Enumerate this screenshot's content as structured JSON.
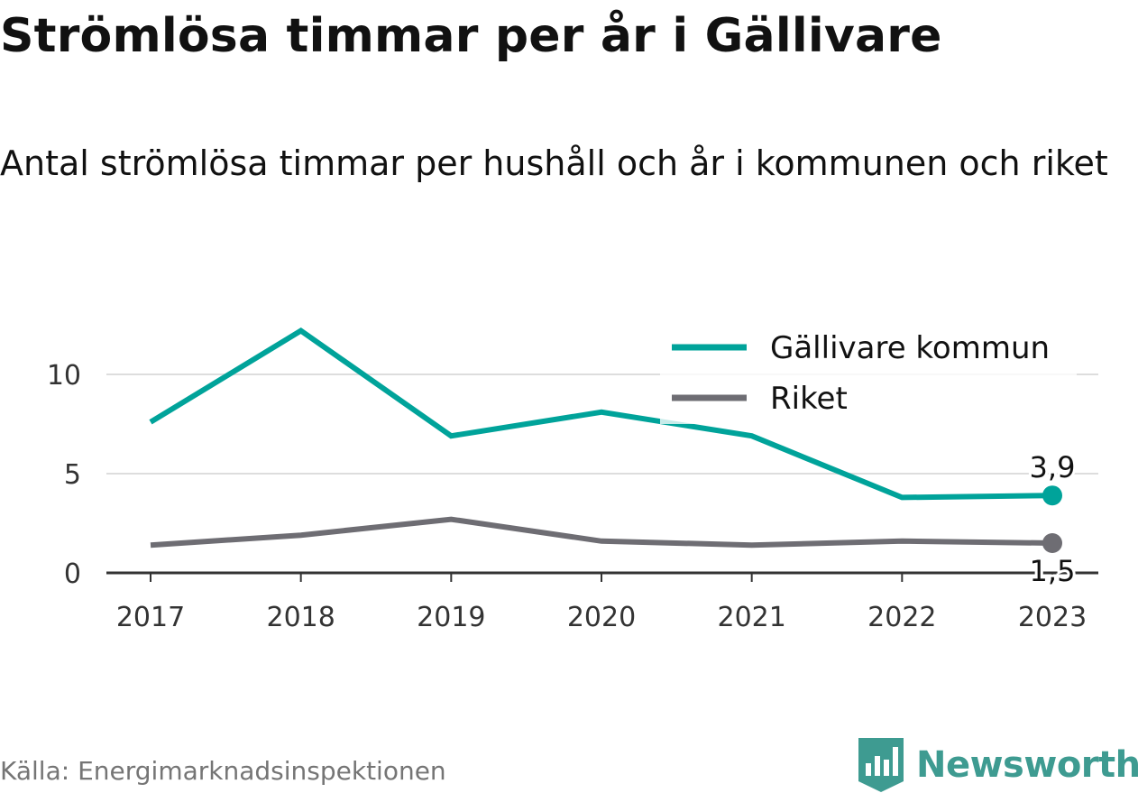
{
  "title": "Strömlösa timmar per år i Gällivare",
  "subtitle": "Antal strömlösa timmar per hushåll och år i kommunen och riket",
  "source": "Källa: Energimarknadsinspektionen",
  "brand": "Newsworthy",
  "colors": {
    "gallivare": "#00a39a",
    "riket": "#6e6d73",
    "grid": "#dddddd",
    "axis": "#333333",
    "brand": "#3e9b91"
  },
  "chart_data": {
    "type": "line",
    "x": [
      "2017",
      "2018",
      "2019",
      "2020",
      "2021",
      "2022",
      "2023"
    ],
    "series": [
      {
        "name": "Gällivare kommun",
        "values": [
          7.6,
          12.2,
          6.9,
          8.1,
          6.9,
          3.8,
          3.9
        ]
      },
      {
        "name": "Riket",
        "values": [
          1.4,
          1.9,
          2.7,
          1.6,
          1.4,
          1.6,
          1.5
        ]
      }
    ],
    "end_labels": [
      "3,9",
      "1,5"
    ],
    "yticks": [
      0,
      5,
      10
    ],
    "ylim": [
      0,
      12.5
    ],
    "grid": true,
    "legend": "top-right"
  }
}
